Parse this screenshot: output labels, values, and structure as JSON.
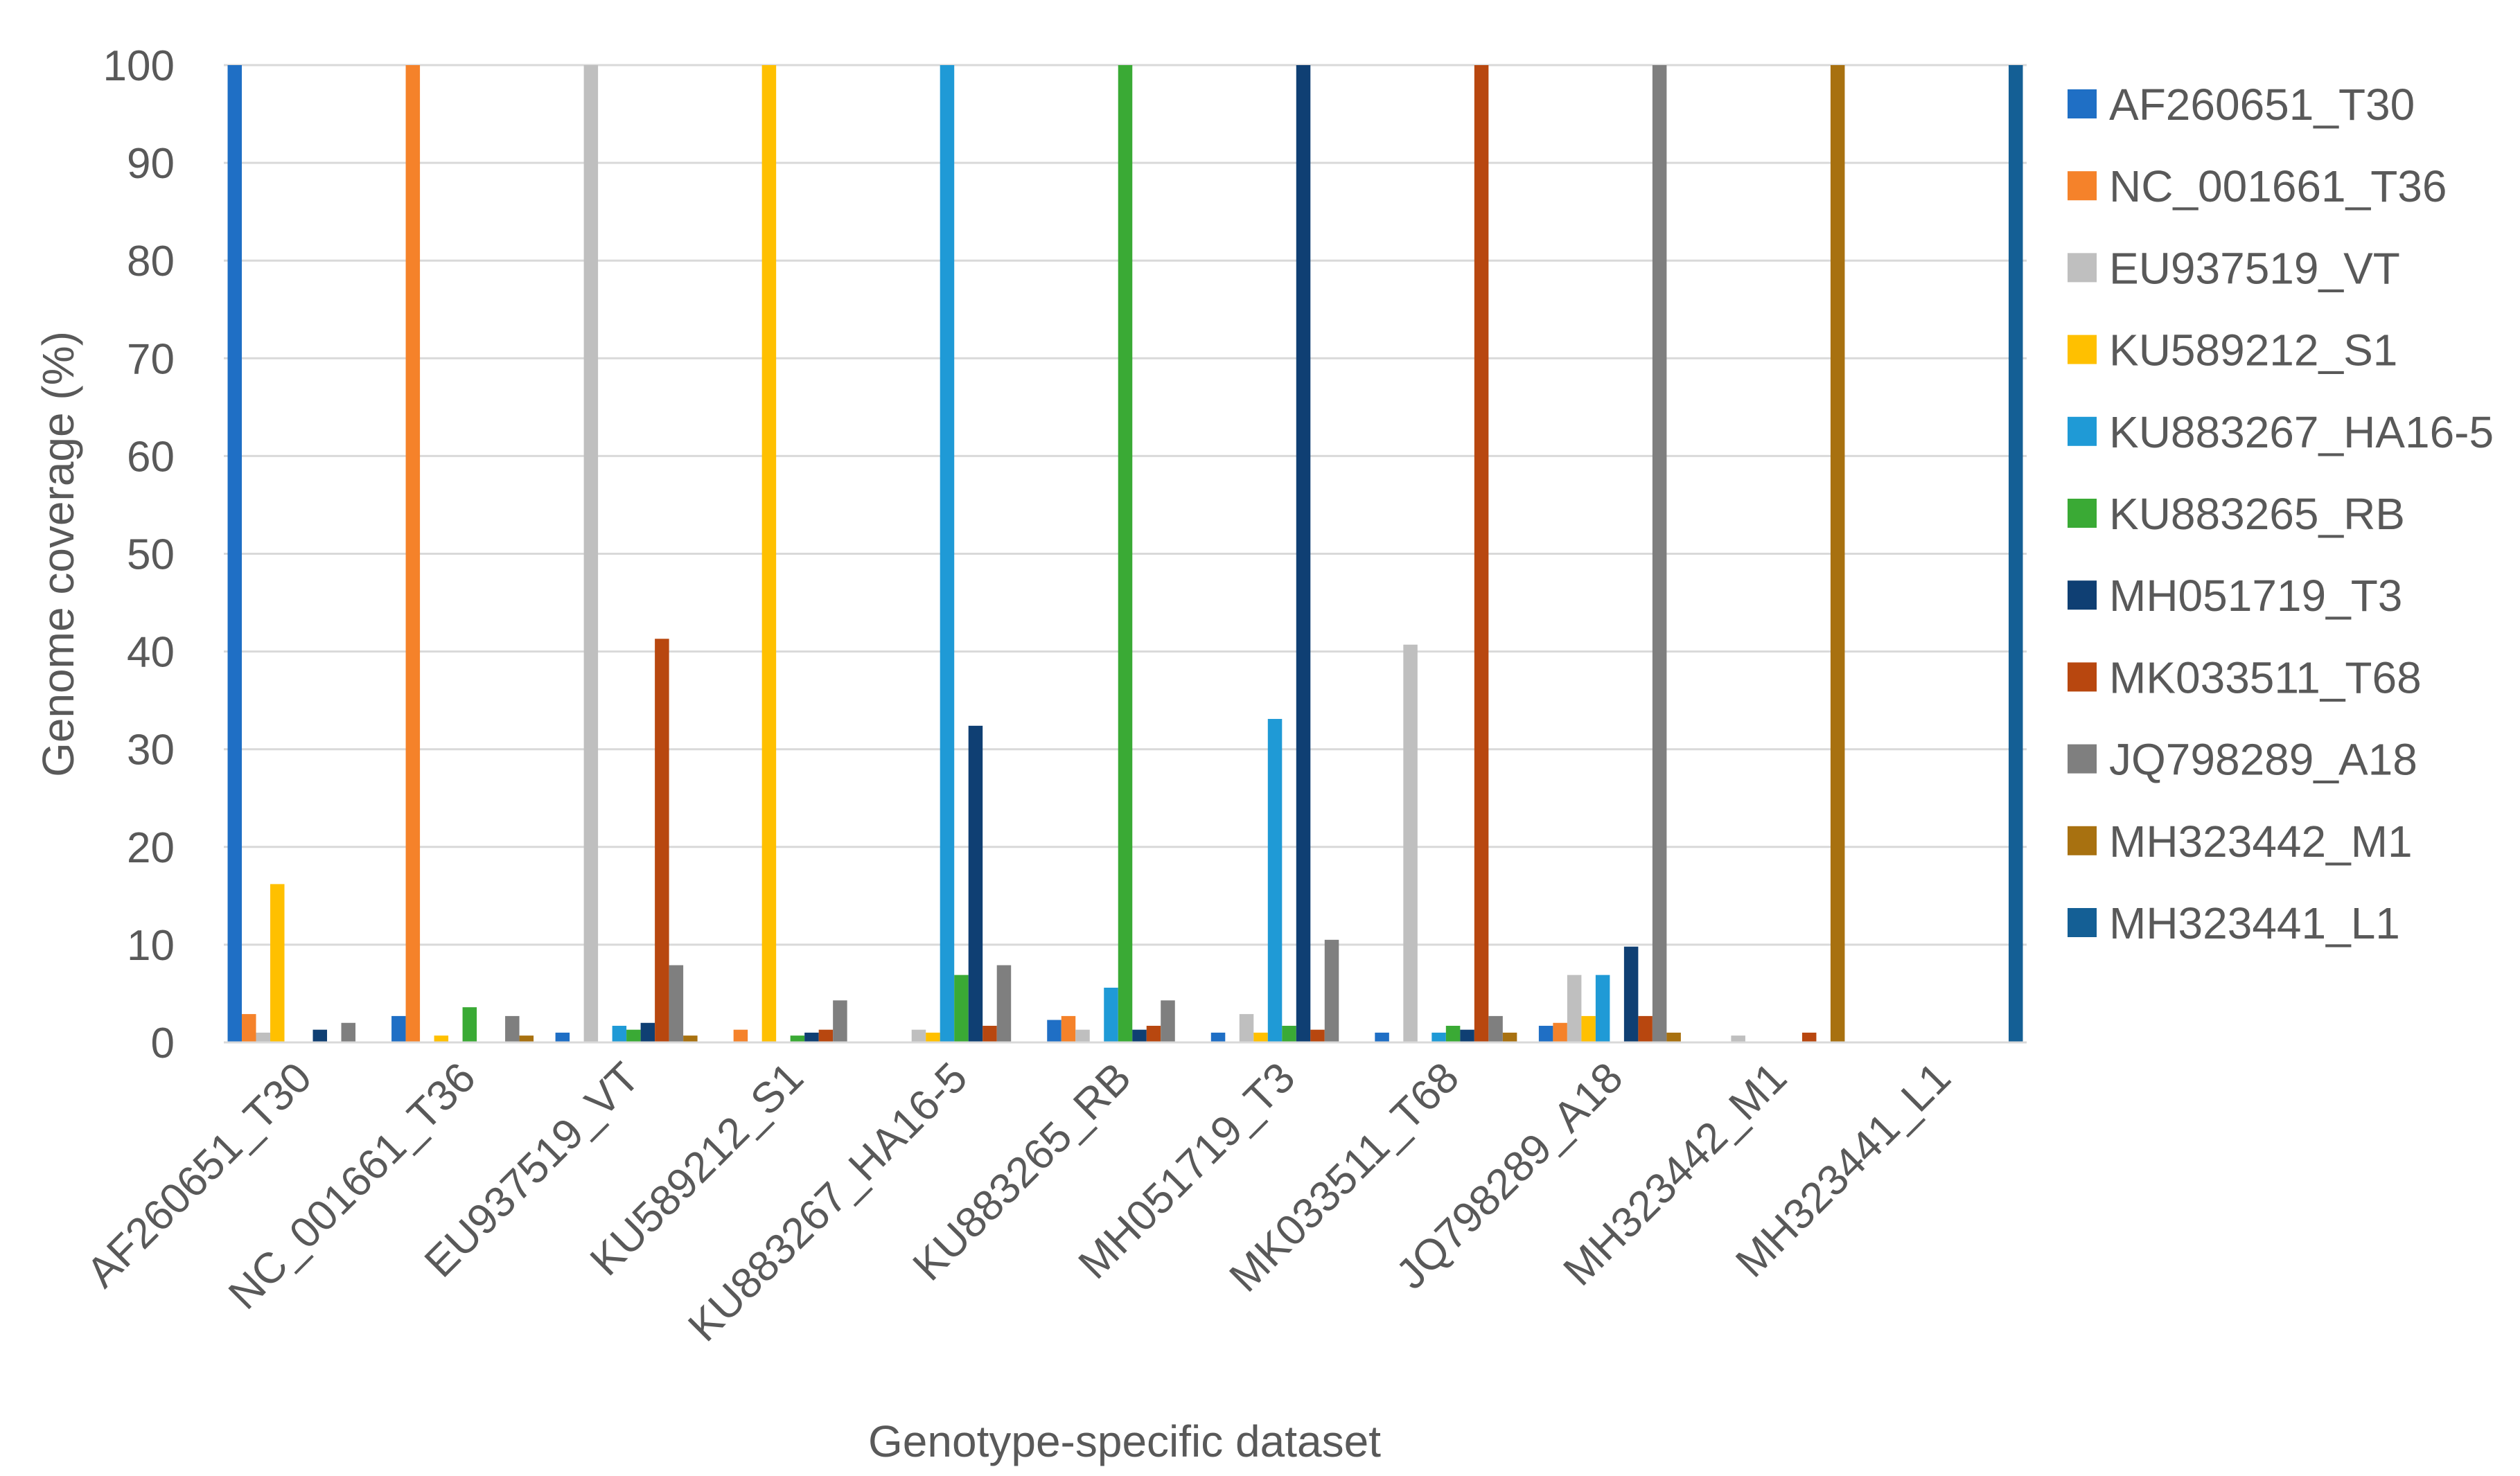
{
  "chart_data": {
    "type": "bar",
    "title": "",
    "xlabel": "Genotype-specific dataset",
    "ylabel": "Genome coverage (%)",
    "ylim": [
      0,
      100
    ],
    "yticks": [
      0,
      10,
      20,
      30,
      40,
      50,
      60,
      70,
      80,
      90,
      100
    ],
    "grid": "horizontal",
    "legend": "right",
    "categories": [
      "AF260651_T30",
      "NC_001661_T36",
      "EU937519_VT",
      "KU589212_S1",
      "KU883267_HA16-5",
      "KU883265_RB",
      "MH051719_T3",
      "MK033511_T68",
      "JQ798289_A18",
      "MH323442_M1",
      "MH323441_L1"
    ],
    "series": [
      {
        "name": "AF260651_T30",
        "color": "#1F6FC5",
        "values": [
          100,
          2.7,
          1,
          0,
          0,
          2.3,
          1,
          1,
          1.7,
          0,
          0
        ]
      },
      {
        "name": "NC_001661_T36",
        "color": "#F5822A",
        "values": [
          2.9,
          100,
          0,
          1.3,
          0,
          2.7,
          0,
          0,
          2,
          0,
          0
        ]
      },
      {
        "name": "EU937519_VT",
        "color": "#BFBFBF",
        "values": [
          1,
          0,
          100,
          0,
          1.3,
          1.3,
          2.9,
          40.7,
          6.9,
          0.7,
          0
        ]
      },
      {
        "name": "KU589212_S1",
        "color": "#FFC000",
        "values": [
          16.2,
          0.7,
          0,
          100,
          1,
          0,
          1,
          0,
          2.7,
          0,
          0
        ]
      },
      {
        "name": "KU883267_HA16-5",
        "color": "#1F9AD6",
        "values": [
          0,
          0,
          1.7,
          0,
          100,
          5.6,
          33.1,
          1,
          6.9,
          0,
          0
        ]
      },
      {
        "name": "KU883265_RB",
        "color": "#3AAA35",
        "values": [
          0,
          3.6,
          1.3,
          0.7,
          6.9,
          100,
          1.7,
          1.7,
          0,
          0,
          0
        ]
      },
      {
        "name": "MH051719_T3",
        "color": "#0F3F73",
        "values": [
          1.3,
          0,
          2,
          1,
          32.4,
          1.3,
          100,
          1.3,
          9.8,
          0,
          0
        ]
      },
      {
        "name": "MK033511_T68",
        "color": "#B8470F",
        "values": [
          0,
          0,
          41.3,
          1.3,
          1.7,
          1.7,
          1.3,
          100,
          2.7,
          1,
          0
        ]
      },
      {
        "name": "JQ798289_A18",
        "color": "#7F7F7F",
        "values": [
          2,
          2.7,
          7.9,
          4.3,
          7.9,
          4.3,
          10.5,
          2.7,
          100,
          0,
          0
        ]
      },
      {
        "name": "MH323442_M1",
        "color": "#A87110",
        "values": [
          0,
          0.7,
          0.7,
          0,
          0,
          0,
          0,
          1,
          1,
          100,
          0
        ]
      },
      {
        "name": "MH323441_L1",
        "color": "#145F95",
        "values": [
          0,
          0,
          0,
          0,
          0,
          0,
          0,
          0,
          0,
          0,
          100
        ]
      }
    ]
  }
}
